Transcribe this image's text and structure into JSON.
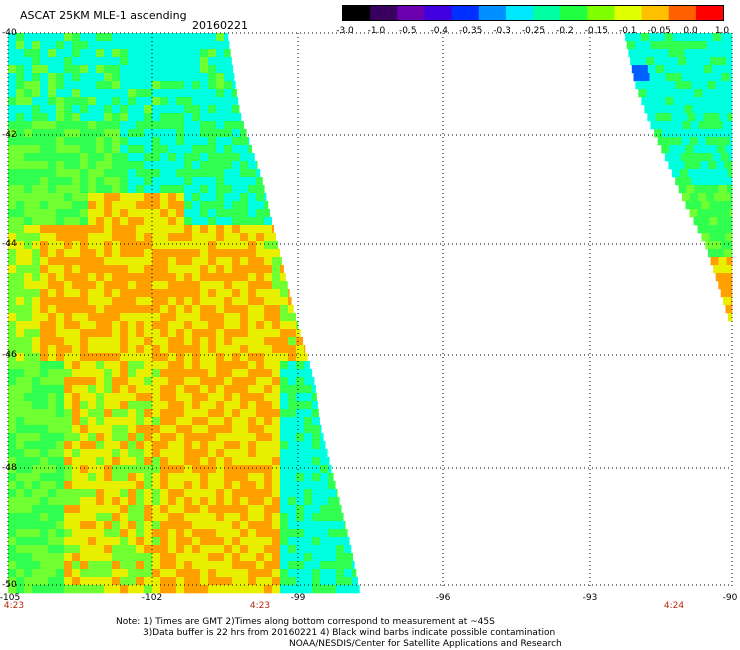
{
  "header": {
    "title": "ASCAT 25KM MLE-1 ascending",
    "date": "20160221"
  },
  "colorbar": {
    "labels": [
      "-3.0",
      "-1.0",
      "-0.5",
      "-0.4",
      "-0.35",
      "-0.3",
      "-0.25",
      "-0.2",
      "-0.15",
      "-0.1",
      "-0.05",
      "0.0",
      "1.0"
    ],
    "colors": [
      "#000000",
      "#3a0060",
      "#6c00b0",
      "#4000e0",
      "#0030ff",
      "#0090ff",
      "#00e8ff",
      "#00ffa0",
      "#20ff40",
      "#80ff00",
      "#e0ff00",
      "#ffc000",
      "#ff6000",
      "#ff0000"
    ]
  },
  "map": {
    "lat_labels": [
      "-40",
      "-42",
      "-44",
      "-46",
      "-48",
      "-50"
    ],
    "lon_labels": [
      "-105",
      "-102",
      "-99",
      "-96",
      "-93",
      "-90"
    ],
    "time_labels": [
      "4:23",
      "4:23",
      "4:24"
    ],
    "colors": {
      "teal": "#00ffe0",
      "green": "#30ff50",
      "light_green": "#70ff30",
      "yellow": "#e8f000",
      "orange": "#ffa000",
      "blue": "#0060ff"
    }
  },
  "notes": {
    "line1": "Note: 1) Times are GMT 2)Times along bottom correspond to measurement at ~45S",
    "line2": "3)Data buffer is 22 hrs from 20160221 4) Black wind barbs indicate possible contamination",
    "line3": "NOAA/NESDIS/Center for Satellite Applications and Research"
  }
}
